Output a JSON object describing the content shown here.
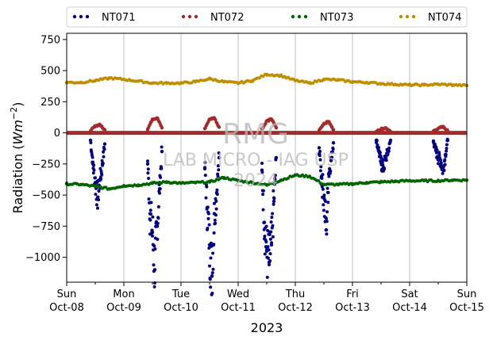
{
  "chart_data": {
    "type": "scatter",
    "xlabel": "2023",
    "ylabel_main": "Radiation (",
    "ylabel_unit": "Wm",
    "ylabel_exp": "−2",
    "ylabel_close": ")",
    "ylim": [
      -1200,
      800
    ],
    "xlim": [
      "2023-10-08",
      "2023-10-15"
    ],
    "grid": "x-major",
    "legend_position": "top",
    "y_ticks": [
      750,
      500,
      250,
      0,
      -250,
      -500,
      -750,
      -1000
    ],
    "y_tick_labels": [
      "750",
      "500",
      "250",
      "0",
      "−250",
      "−500",
      "−750",
      "−1000"
    ],
    "x_ticks": [
      {
        "date": "2023-10-08",
        "day": "Sun",
        "label": "Oct-08"
      },
      {
        "date": "2023-10-09",
        "day": "Mon",
        "label": "Oct-09"
      },
      {
        "date": "2023-10-10",
        "day": "Tue",
        "label": "Oct-10"
      },
      {
        "date": "2023-10-11",
        "day": "Wed",
        "label": "Oct-11"
      },
      {
        "date": "2023-10-12",
        "day": "Thu",
        "label": "Oct-12"
      },
      {
        "date": "2023-10-13",
        "day": "Fri",
        "label": "Oct-13"
      },
      {
        "date": "2023-10-14",
        "day": "Sat",
        "label": "Oct-14"
      },
      {
        "date": "2023-10-15",
        "day": "Sun",
        "label": "Oct-15"
      }
    ],
    "series": [
      {
        "name": "NT071",
        "color": "#000080",
        "x": [
          "2023-10-08 10:00",
          "2023-10-08 11:00",
          "2023-10-08 12:00",
          "2023-10-08 13:00",
          "2023-10-08 14:00",
          "2023-10-08 15:00",
          "2023-10-08 16:00",
          "2023-10-09 10:00",
          "2023-10-09 11:00",
          "2023-10-09 12:00",
          "2023-10-09 13:00",
          "2023-10-09 14:00",
          "2023-10-09 15:00",
          "2023-10-09 16:00",
          "2023-10-10 10:00",
          "2023-10-10 11:00",
          "2023-10-10 12:00",
          "2023-10-10 13:00",
          "2023-10-10 14:00",
          "2023-10-10 15:00",
          "2023-10-10 16:00",
          "2023-10-11 10:00",
          "2023-10-11 11:00",
          "2023-10-11 12:00",
          "2023-10-11 13:00",
          "2023-10-11 14:00",
          "2023-10-11 15:00",
          "2023-10-11 16:00",
          "2023-10-12 10:00",
          "2023-10-12 11:00",
          "2023-10-12 12:00",
          "2023-10-12 13:00",
          "2023-10-12 14:00",
          "2023-10-12 15:00",
          "2023-10-12 16:00",
          "2023-10-13 10:00",
          "2023-10-13 11:00",
          "2023-10-13 12:00",
          "2023-10-13 13:00",
          "2023-10-13 14:00",
          "2023-10-13 15:00",
          "2023-10-13 16:00",
          "2023-10-14 10:00",
          "2023-10-14 11:00",
          "2023-10-14 12:00",
          "2023-10-14 13:00",
          "2023-10-14 14:00",
          "2023-10-14 15:00",
          "2023-10-14 16:00"
        ],
        "y": [
          -60,
          -250,
          -400,
          -520,
          -380,
          -250,
          -90,
          -250,
          -650,
          -800,
          -1100,
          -750,
          -450,
          -150,
          -280,
          -600,
          -900,
          -1150,
          -650,
          -480,
          -200,
          -300,
          -720,
          -950,
          -1040,
          -900,
          -550,
          -200,
          -120,
          -350,
          -520,
          -780,
          -330,
          -220,
          -80,
          -60,
          -140,
          -240,
          -280,
          -200,
          -150,
          -60,
          -70,
          -140,
          -200,
          -220,
          -300,
          -180,
          -60
        ]
      },
      {
        "name": "NT072",
        "color": "#a52a2a",
        "x": [
          "2023-10-08 10:00",
          "2023-10-08 12:00",
          "2023-10-08 14:00",
          "2023-10-08 16:00",
          "2023-10-09 10:00",
          "2023-10-09 12:00",
          "2023-10-09 14:00",
          "2023-10-09 16:00",
          "2023-10-10 10:00",
          "2023-10-10 12:00",
          "2023-10-10 14:00",
          "2023-10-10 16:00",
          "2023-10-11 10:00",
          "2023-10-11 12:00",
          "2023-10-11 14:00",
          "2023-10-11 16:00",
          "2023-10-12 10:00",
          "2023-10-12 12:00",
          "2023-10-12 14:00",
          "2023-10-12 16:00",
          "2023-10-13 10:00",
          "2023-10-13 12:00",
          "2023-10-13 14:00",
          "2023-10-13 16:00",
          "2023-10-14 10:00",
          "2023-10-14 12:00",
          "2023-10-14 14:00",
          "2023-10-14 16:00"
        ],
        "y": [
          15,
          55,
          65,
          25,
          30,
          110,
          120,
          40,
          35,
          110,
          120,
          45,
          30,
          95,
          110,
          40,
          20,
          75,
          90,
          25,
          10,
          30,
          40,
          10,
          10,
          35,
          50,
          15
        ]
      },
      {
        "name": "NT073",
        "color": "#006400",
        "x": [
          "2023-10-08 00:00",
          "2023-10-08 06:00",
          "2023-10-08 12:00",
          "2023-10-08 18:00",
          "2023-10-09 00:00",
          "2023-10-09 06:00",
          "2023-10-09 12:00",
          "2023-10-09 18:00",
          "2023-10-10 00:00",
          "2023-10-10 06:00",
          "2023-10-10 12:00",
          "2023-10-10 18:00",
          "2023-10-11 00:00",
          "2023-10-11 06:00",
          "2023-10-11 12:00",
          "2023-10-11 18:00",
          "2023-10-12 00:00",
          "2023-10-12 06:00",
          "2023-10-12 12:00",
          "2023-10-12 18:00",
          "2023-10-13 00:00",
          "2023-10-13 06:00",
          "2023-10-13 12:00",
          "2023-10-13 18:00",
          "2023-10-14 00:00",
          "2023-10-14 06:00",
          "2023-10-14 12:00",
          "2023-10-14 18:00",
          "2023-10-15 00:00"
        ],
        "y": [
          -410,
          -415,
          -430,
          -450,
          -425,
          -420,
          -405,
          -395,
          -405,
          -400,
          -395,
          -360,
          -385,
          -400,
          -420,
          -380,
          -340,
          -350,
          -415,
          -415,
          -410,
          -400,
          -395,
          -390,
          -385,
          -385,
          -385,
          -380,
          -380
        ]
      },
      {
        "name": "NT074",
        "color": "#bf8f00",
        "x": [
          "2023-10-08 00:00",
          "2023-10-08 06:00",
          "2023-10-08 12:00",
          "2023-10-08 18:00",
          "2023-10-09 00:00",
          "2023-10-09 06:00",
          "2023-10-09 12:00",
          "2023-10-09 18:00",
          "2023-10-10 00:00",
          "2023-10-10 06:00",
          "2023-10-10 12:00",
          "2023-10-10 18:00",
          "2023-10-11 00:00",
          "2023-10-11 06:00",
          "2023-10-11 12:00",
          "2023-10-11 18:00",
          "2023-10-12 00:00",
          "2023-10-12 06:00",
          "2023-10-12 12:00",
          "2023-10-12 18:00",
          "2023-10-13 00:00",
          "2023-10-13 06:00",
          "2023-10-13 12:00",
          "2023-10-13 18:00",
          "2023-10-14 00:00",
          "2023-10-14 06:00",
          "2023-10-14 12:00",
          "2023-10-14 18:00",
          "2023-10-15 00:00"
        ],
        "y": [
          405,
          405,
          420,
          440,
          430,
          415,
          400,
          400,
          400,
          410,
          435,
          410,
          400,
          420,
          470,
          460,
          420,
          400,
          430,
          425,
          410,
          405,
          395,
          390,
          385,
          385,
          390,
          385,
          380
        ]
      }
    ]
  },
  "watermark": {
    "line1": "RMG",
    "line2": "LAB MICRO - IAG USP",
    "line3": "2024"
  }
}
